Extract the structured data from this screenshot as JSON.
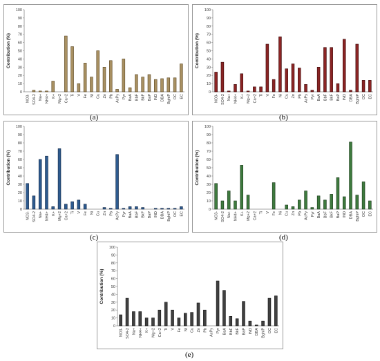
{
  "chart_data": [
    {
      "type": "bar",
      "caption": "(a)",
      "ylabel": "Contribution (%)",
      "ylim": [
        0,
        100
      ],
      "yticks": [
        0,
        10,
        20,
        30,
        40,
        50,
        60,
        70,
        80,
        90,
        100
      ],
      "grid": false,
      "categories": [
        "NO3-",
        "SO4-2",
        "Na+",
        "NH4+",
        "K+",
        "Mg+2",
        "Ca+2",
        "Ti",
        "V",
        "Fe",
        "Ni",
        "Cu",
        "Zn",
        "Pb",
        "AcPy",
        "Pyr",
        "BaA",
        "BbF",
        "BkF",
        "BaP",
        "IND",
        "DBA",
        "BghiP",
        "OC",
        "EC"
      ],
      "series": [
        {
          "values": [
            0,
            2,
            1,
            1,
            13,
            0,
            68,
            55,
            10,
            35,
            18,
            50,
            30,
            38,
            3,
            40,
            5,
            21,
            18,
            21,
            15,
            16,
            17,
            17,
            34
          ]
        }
      ],
      "colors": {
        "fill": "#a89062",
        "stroke": "#5a4520"
      }
    },
    {
      "type": "bar",
      "caption": "(b)",
      "ylabel": "Contribution (%)",
      "ylim": [
        0,
        100
      ],
      "yticks": [
        0,
        10,
        20,
        30,
        40,
        50,
        60,
        70,
        80,
        90,
        100
      ],
      "grid": false,
      "categories": [
        "NO3-",
        "SO4-2",
        "Na+",
        "NH4+",
        "K+",
        "Mg+2",
        "Ca+2",
        "Ti",
        "V",
        "Fe",
        "Ni",
        "Cu",
        "Zn",
        "Pb",
        "AcPy",
        "Pyr",
        "BaA",
        "BbF",
        "BkF",
        "BaP",
        "IND",
        "DBA",
        "BghiP",
        "OC",
        "EC"
      ],
      "series": [
        {
          "values": [
            24,
            36,
            1,
            9,
            22,
            1,
            6,
            6,
            58,
            15,
            67,
            28,
            34,
            29,
            9,
            2,
            30,
            54,
            54,
            10,
            64,
            2,
            58,
            14,
            14
          ]
        }
      ],
      "colors": {
        "fill": "#8a2424",
        "stroke": "#3a0808"
      }
    },
    {
      "type": "bar",
      "caption": "(c)",
      "ylabel": "Contribution (%)",
      "ylim": [
        0,
        100
      ],
      "yticks": [
        0,
        10,
        20,
        30,
        40,
        50,
        60,
        70,
        80,
        90,
        100
      ],
      "grid": false,
      "categories": [
        "NO3-",
        "SO4-2",
        "Na+",
        "NH4+",
        "K+",
        "Mg+2",
        "Ca+2",
        "Ti",
        "V",
        "Fe",
        "Ni",
        "Cu",
        "Zn",
        "Pb",
        "AcPy",
        "Pyr",
        "BaA",
        "BbF",
        "BkF",
        "BaP",
        "IND",
        "DBA",
        "BghiP",
        "OC",
        "EC"
      ],
      "series": [
        {
          "values": [
            31,
            16,
            60,
            64,
            3,
            73,
            6,
            9,
            11,
            6,
            0,
            0,
            2,
            1,
            66,
            1,
            3,
            3,
            2,
            0,
            1,
            1,
            1,
            1,
            3
          ]
        }
      ],
      "colors": {
        "fill": "#2e5b8f",
        "stroke": "#0d2240"
      }
    },
    {
      "type": "bar",
      "caption": "(d)",
      "ylabel": "Contribution (%)",
      "ylim": [
        0,
        100
      ],
      "yticks": [
        0,
        10,
        20,
        30,
        40,
        50,
        60,
        70,
        80,
        90,
        100
      ],
      "grid": false,
      "categories": [
        "NO3-",
        "SO4-2",
        "Na+",
        "NH4+",
        "K+",
        "Mg+2",
        "Ca+2",
        "Ti",
        "V",
        "Fe",
        "Ni",
        "Cu",
        "Zn",
        "Pb",
        "AcPy",
        "Pyr",
        "BaA",
        "BbF",
        "BkF",
        "BaP",
        "IND",
        "DBA",
        "BghiP",
        "OC",
        "EC"
      ],
      "series": [
        {
          "values": [
            31,
            10,
            22,
            10,
            53,
            17,
            0,
            0,
            0,
            32,
            0,
            5,
            3,
            11,
            22,
            2,
            16,
            11,
            18,
            38,
            15,
            81,
            17,
            33,
            10
          ]
        }
      ],
      "colors": {
        "fill": "#3e7a3e",
        "stroke": "#153315"
      }
    },
    {
      "type": "bar",
      "caption": "(e)",
      "ylabel": "Contribution (%)",
      "ylim": [
        0,
        100
      ],
      "yticks": [
        0,
        10,
        20,
        30,
        40,
        50,
        60,
        70,
        80,
        90,
        100
      ],
      "grid": false,
      "categories": [
        "NO3-",
        "SO4-2",
        "Na+",
        "NH4+",
        "K+",
        "Mg+2",
        "Ca+2",
        "Ti",
        "V",
        "Fe",
        "Ni",
        "Cu",
        "Zn",
        "Pb",
        "AcPy",
        "Pyr",
        "BaA",
        "BbF",
        "BkF",
        "BaP",
        "IND",
        "DBA",
        "BghiP",
        "OC",
        "EC"
      ],
      "series": [
        {
          "values": [
            14,
            35,
            18,
            18,
            10,
            10,
            20,
            30,
            20,
            10,
            16,
            17,
            29,
            20,
            0,
            57,
            45,
            12,
            9,
            31,
            6,
            1,
            6,
            35,
            38
          ]
        }
      ],
      "colors": {
        "fill": "#404040",
        "stroke": "#111111"
      }
    }
  ]
}
